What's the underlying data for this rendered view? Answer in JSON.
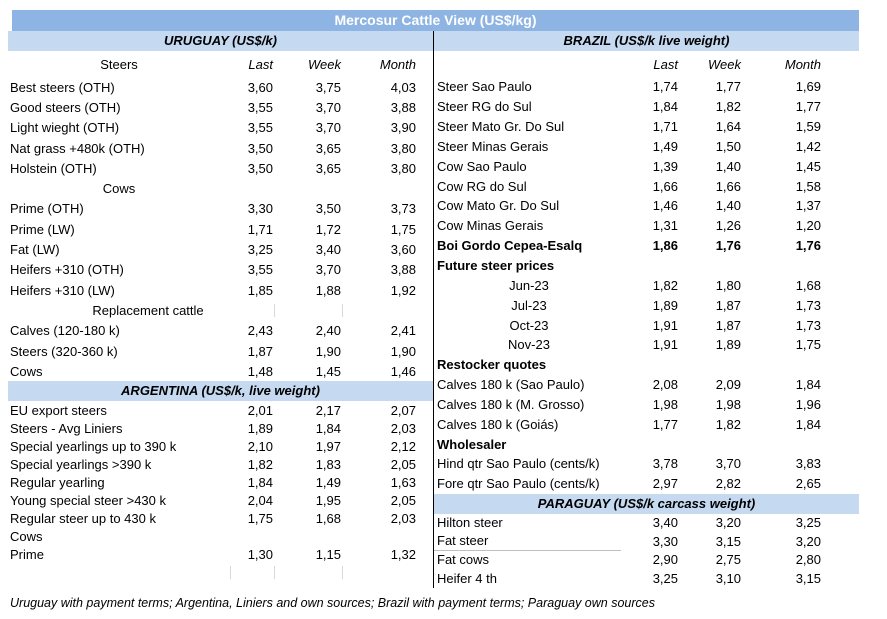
{
  "title": "Mercosur Cattle View (US$/kg)",
  "footnote": "Uruguay with payment terms; Argentina, Liniers and own sources; Brazil with payment terms; Paraguay own sources",
  "columns": {
    "last": "Last",
    "week": "Week",
    "month": "Month"
  },
  "colors": {
    "title_bar": "#8DB4E2",
    "section_bar": "#C5D9F1",
    "divider": "#000000",
    "grid_artifact": "#D9D9D9",
    "title_text": "#FFFFFF"
  },
  "uruguay": {
    "header": "URUGUAY (US$/k)",
    "group_label": "Steers",
    "rows": [
      {
        "label": "Best steers (OTH)",
        "last": "3,60",
        "week": "3,75",
        "month": "4,03"
      },
      {
        "label": "Good steers (OTH)",
        "last": "3,55",
        "week": "3,70",
        "month": "3,88"
      },
      {
        "label": "Light wieght (OTH)",
        "last": "3,55",
        "week": "3,70",
        "month": "3,90"
      },
      {
        "label": "Nat grass +480k (OTH)",
        "last": "3,50",
        "week": "3,65",
        "month": "3,80"
      },
      {
        "label": "Holstein (OTH)",
        "last": "3,50",
        "week": "3,65",
        "month": "3,80"
      },
      {
        "label": "Cows"
      },
      {
        "label": "Prime (OTH)",
        "last": "3,30",
        "week": "3,50",
        "month": "3,73"
      },
      {
        "label": "Prime (LW)",
        "last": "1,71",
        "week": "1,72",
        "month": "1,75"
      },
      {
        "label": "Fat (LW)",
        "last": "3,25",
        "week": "3,40",
        "month": "3,60"
      },
      {
        "label": "Heifers +310 (OTH)",
        "last": "3,55",
        "week": "3,70",
        "month": "3,88"
      },
      {
        "label": "Heifers +310 (LW)",
        "last": "1,85",
        "week": "1,88",
        "month": "1,92"
      },
      {
        "label": "Replacement cattle"
      },
      {
        "label": "Calves (120-180 k)",
        "last": "2,43",
        "week": "2,40",
        "month": "2,41"
      },
      {
        "label": "Steers (320-360 k)",
        "last": "1,87",
        "week": "1,90",
        "month": "1,90"
      },
      {
        "label": "Cows",
        "last": "1,48",
        "week": "1,45",
        "month": "1,46"
      }
    ]
  },
  "argentina": {
    "header": "ARGENTINA (US$/k, live weight)",
    "rows": [
      {
        "label": "EU export steers",
        "last": "2,01",
        "week": "2,17",
        "month": "2,07"
      },
      {
        "label": "Steers - Avg Liniers",
        "last": "1,89",
        "week": "1,84",
        "month": "2,03"
      },
      {
        "label": "Special yearlings up to 390 k",
        "last": "2,10",
        "week": "1,97",
        "month": "2,12"
      },
      {
        "label": "Special yearlings >390 k",
        "last": "1,82",
        "week": "1,83",
        "month": "2,05"
      },
      {
        "label": "Regular yearling",
        "last": "1,84",
        "week": "1,49",
        "month": "1,63"
      },
      {
        "label": "Young special steer >430 k",
        "last": "2,04",
        "week": "1,95",
        "month": "2,05"
      },
      {
        "label": "Regular steer up to 430 k",
        "last": "1,75",
        "week": "1,68",
        "month": "2,03"
      },
      {
        "label": "Cows"
      },
      {
        "label": "Prime",
        "last": "1,30",
        "week": "1,15",
        "month": "1,32"
      }
    ]
  },
  "brazil": {
    "header": "BRAZIL  (US$/k live weight)",
    "rows": [
      {
        "label": "Steer Sao Paulo",
        "last": "1,74",
        "week": "1,77",
        "month": "1,69"
      },
      {
        "label": "Steer RG do Sul",
        "last": "1,84",
        "week": "1,82",
        "month": "1,77"
      },
      {
        "label": "Steer Mato Gr. Do Sul",
        "last": "1,71",
        "week": "1,64",
        "month": "1,59"
      },
      {
        "label": "Steer Minas Gerais",
        "last": "1,49",
        "week": "1,50",
        "month": "1,42"
      },
      {
        "label": "Cow Sao Paulo",
        "last": "1,39",
        "week": "1,40",
        "month": "1,45"
      },
      {
        "label": "Cow RG do Sul",
        "last": "1,66",
        "week": "1,66",
        "month": "1,58"
      },
      {
        "label": "Cow Mato Gr. Do Sul",
        "last": "1,46",
        "week": "1,40",
        "month": "1,37"
      },
      {
        "label": "Cow Minas Gerais",
        "last": "1,31",
        "week": "1,26",
        "month": "1,20"
      },
      {
        "label": "Boi Gordo Cepea-Esalq",
        "last": "1,86",
        "week": "1,76",
        "month": "1,76"
      },
      {
        "label": "Future steer prices"
      },
      {
        "label": "Jun-23",
        "last": "1,82",
        "week": "1,80",
        "month": "1,68"
      },
      {
        "label": "Jul-23",
        "last": "1,89",
        "week": "1,87",
        "month": "1,73"
      },
      {
        "label": "Oct-23",
        "last": "1,91",
        "week": "1,87",
        "month": "1,73"
      },
      {
        "label": "Nov-23",
        "last": "1,91",
        "week": "1,89",
        "month": "1,75"
      },
      {
        "label": "Restocker quotes"
      },
      {
        "label": "Calves 180 k (Sao Paulo)",
        "last": "2,08",
        "week": "2,09",
        "month": "1,84"
      },
      {
        "label": "Calves 180 k (M. Grosso)",
        "last": "1,98",
        "week": "1,98",
        "month": "1,96"
      },
      {
        "label": "Calves 180 k (Goiás)",
        "last": "1,77",
        "week": "1,82",
        "month": "1,84"
      },
      {
        "label": "Wholesaler"
      },
      {
        "label": "Hind qtr Sao Paulo (cents/k)",
        "last": "3,78",
        "week": "3,70",
        "month": "3,83"
      },
      {
        "label": "Fore qtr Sao Paulo (cents/k)",
        "last": "2,97",
        "week": "2,82",
        "month": "2,65"
      }
    ]
  },
  "paraguay": {
    "header": "PARAGUAY  (US$/k carcass weight)",
    "rows": [
      {
        "label": "Hilton steer",
        "last": "3,40",
        "week": "3,20",
        "month": "3,25"
      },
      {
        "label": "Fat steer",
        "last": "3,30",
        "week": "3,15",
        "month": "3,20"
      },
      {
        "label": "Fat cows",
        "last": "2,90",
        "week": "2,75",
        "month": "2,80"
      },
      {
        "label": "Heifer 4 th",
        "last": "3,25",
        "week": "3,10",
        "month": "3,15"
      }
    ]
  }
}
